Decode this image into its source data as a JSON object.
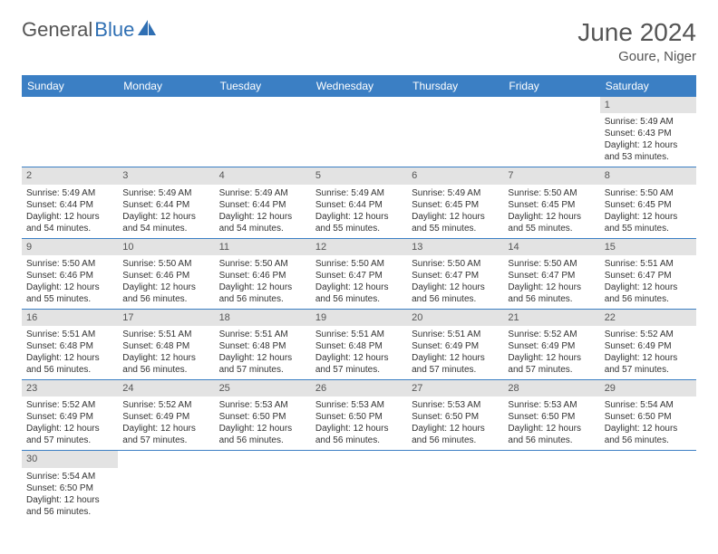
{
  "brand": {
    "part1": "General",
    "part2": "Blue"
  },
  "title": "June 2024",
  "location": "Goure, Niger",
  "colors": {
    "header_bg": "#3b7fc4",
    "header_text": "#ffffff",
    "daynum_bg": "#e3e3e3",
    "row_divider": "#3b7fc4",
    "text": "#333333",
    "title_text": "#555555"
  },
  "day_headers": [
    "Sunday",
    "Monday",
    "Tuesday",
    "Wednesday",
    "Thursday",
    "Friday",
    "Saturday"
  ],
  "weeks": [
    [
      null,
      null,
      null,
      null,
      null,
      null,
      {
        "n": "1",
        "sr": "5:49 AM",
        "ss": "6:43 PM",
        "dl": "12 hours and 53 minutes."
      }
    ],
    [
      {
        "n": "2",
        "sr": "5:49 AM",
        "ss": "6:44 PM",
        "dl": "12 hours and 54 minutes."
      },
      {
        "n": "3",
        "sr": "5:49 AM",
        "ss": "6:44 PM",
        "dl": "12 hours and 54 minutes."
      },
      {
        "n": "4",
        "sr": "5:49 AM",
        "ss": "6:44 PM",
        "dl": "12 hours and 54 minutes."
      },
      {
        "n": "5",
        "sr": "5:49 AM",
        "ss": "6:44 PM",
        "dl": "12 hours and 55 minutes."
      },
      {
        "n": "6",
        "sr": "5:49 AM",
        "ss": "6:45 PM",
        "dl": "12 hours and 55 minutes."
      },
      {
        "n": "7",
        "sr": "5:50 AM",
        "ss": "6:45 PM",
        "dl": "12 hours and 55 minutes."
      },
      {
        "n": "8",
        "sr": "5:50 AM",
        "ss": "6:45 PM",
        "dl": "12 hours and 55 minutes."
      }
    ],
    [
      {
        "n": "9",
        "sr": "5:50 AM",
        "ss": "6:46 PM",
        "dl": "12 hours and 55 minutes."
      },
      {
        "n": "10",
        "sr": "5:50 AM",
        "ss": "6:46 PM",
        "dl": "12 hours and 56 minutes."
      },
      {
        "n": "11",
        "sr": "5:50 AM",
        "ss": "6:46 PM",
        "dl": "12 hours and 56 minutes."
      },
      {
        "n": "12",
        "sr": "5:50 AM",
        "ss": "6:47 PM",
        "dl": "12 hours and 56 minutes."
      },
      {
        "n": "13",
        "sr": "5:50 AM",
        "ss": "6:47 PM",
        "dl": "12 hours and 56 minutes."
      },
      {
        "n": "14",
        "sr": "5:50 AM",
        "ss": "6:47 PM",
        "dl": "12 hours and 56 minutes."
      },
      {
        "n": "15",
        "sr": "5:51 AM",
        "ss": "6:47 PM",
        "dl": "12 hours and 56 minutes."
      }
    ],
    [
      {
        "n": "16",
        "sr": "5:51 AM",
        "ss": "6:48 PM",
        "dl": "12 hours and 56 minutes."
      },
      {
        "n": "17",
        "sr": "5:51 AM",
        "ss": "6:48 PM",
        "dl": "12 hours and 56 minutes."
      },
      {
        "n": "18",
        "sr": "5:51 AM",
        "ss": "6:48 PM",
        "dl": "12 hours and 57 minutes."
      },
      {
        "n": "19",
        "sr": "5:51 AM",
        "ss": "6:48 PM",
        "dl": "12 hours and 57 minutes."
      },
      {
        "n": "20",
        "sr": "5:51 AM",
        "ss": "6:49 PM",
        "dl": "12 hours and 57 minutes."
      },
      {
        "n": "21",
        "sr": "5:52 AM",
        "ss": "6:49 PM",
        "dl": "12 hours and 57 minutes."
      },
      {
        "n": "22",
        "sr": "5:52 AM",
        "ss": "6:49 PM",
        "dl": "12 hours and 57 minutes."
      }
    ],
    [
      {
        "n": "23",
        "sr": "5:52 AM",
        "ss": "6:49 PM",
        "dl": "12 hours and 57 minutes."
      },
      {
        "n": "24",
        "sr": "5:52 AM",
        "ss": "6:49 PM",
        "dl": "12 hours and 57 minutes."
      },
      {
        "n": "25",
        "sr": "5:53 AM",
        "ss": "6:50 PM",
        "dl": "12 hours and 56 minutes."
      },
      {
        "n": "26",
        "sr": "5:53 AM",
        "ss": "6:50 PM",
        "dl": "12 hours and 56 minutes."
      },
      {
        "n": "27",
        "sr": "5:53 AM",
        "ss": "6:50 PM",
        "dl": "12 hours and 56 minutes."
      },
      {
        "n": "28",
        "sr": "5:53 AM",
        "ss": "6:50 PM",
        "dl": "12 hours and 56 minutes."
      },
      {
        "n": "29",
        "sr": "5:54 AM",
        "ss": "6:50 PM",
        "dl": "12 hours and 56 minutes."
      }
    ],
    [
      {
        "n": "30",
        "sr": "5:54 AM",
        "ss": "6:50 PM",
        "dl": "12 hours and 56 minutes."
      },
      null,
      null,
      null,
      null,
      null,
      null
    ]
  ],
  "labels": {
    "sunrise": "Sunrise: ",
    "sunset": "Sunset: ",
    "daylight": "Daylight: "
  }
}
